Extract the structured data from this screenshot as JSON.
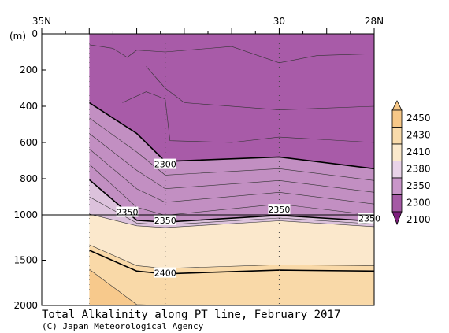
{
  "chart_data": {
    "type": "contour",
    "title": "Total Alkalinity along PT line, February 2017",
    "credit": "(C) Japan Meteorological Agency",
    "xlabel": "",
    "ylabel": "(m)",
    "x_axis": {
      "range": [
        "35N",
        "28N"
      ],
      "tick_labels": [
        {
          "label": "35N",
          "lat": 35
        },
        {
          "label": "30",
          "lat": 30
        },
        {
          "label": "28N",
          "lat": 28
        }
      ]
    },
    "y_axis": {
      "range": [
        0,
        2000
      ],
      "break_at": 1000,
      "tick_labels": [
        "0",
        "200",
        "400",
        "600",
        "800",
        "1000",
        "1500",
        "2000"
      ]
    },
    "data_start_lat": 34.0,
    "legend": {
      "placement": "right",
      "levels": [
        "2450",
        "2430",
        "2410",
        "2380",
        "2350",
        "2300",
        "2100"
      ],
      "colors": [
        "#f7c888",
        "#f9dbab",
        "#fbe9cc",
        "#e9d3e8",
        "#c996c9",
        "#a55aa5",
        "#7e1f7e"
      ]
    },
    "band_colors": {
      "lt2300": "#a85ba8",
      "b2300_2350": "#c28fc2",
      "b2350_2380": "#dcc2dc",
      "b2380_2410": "#fbe8cc",
      "b2410_2430": "#f9d9a8",
      "b2430_2450": "#f7c98c"
    },
    "contours": [
      {
        "value": 2300,
        "bold": true,
        "points": [
          [
            34.0,
            380
          ],
          [
            33.0,
            550
          ],
          [
            32.4,
            705
          ],
          [
            30.0,
            680
          ],
          [
            28.0,
            745
          ]
        ]
      },
      {
        "value": 2350,
        "bold": true,
        "points": [
          [
            34.0,
            805
          ],
          [
            33.0,
            1060
          ],
          [
            32.4,
            1080
          ],
          [
            30.0,
            1005
          ],
          [
            28.0,
            1070
          ]
        ]
      },
      {
        "value": 2400,
        "bold": true,
        "points": [
          [
            34.0,
            1390
          ],
          [
            33.0,
            1620
          ],
          [
            32.4,
            1650
          ],
          [
            30.0,
            1610
          ],
          [
            28.0,
            1620
          ]
        ]
      }
    ],
    "contour_labels": [
      {
        "text": "2300",
        "lat": 32.4,
        "depth": 720
      },
      {
        "text": "2350",
        "lat": 32.4,
        "depth": 1060
      },
      {
        "text": "2350",
        "lat": 30.0,
        "depth": 970
      },
      {
        "text": "2350",
        "lat": 28.1,
        "depth": 1040
      },
      {
        "text": "2350",
        "lat": 33.2,
        "depth": 985
      },
      {
        "text": "2400",
        "lat": 32.4,
        "depth": 1640
      }
    ]
  }
}
